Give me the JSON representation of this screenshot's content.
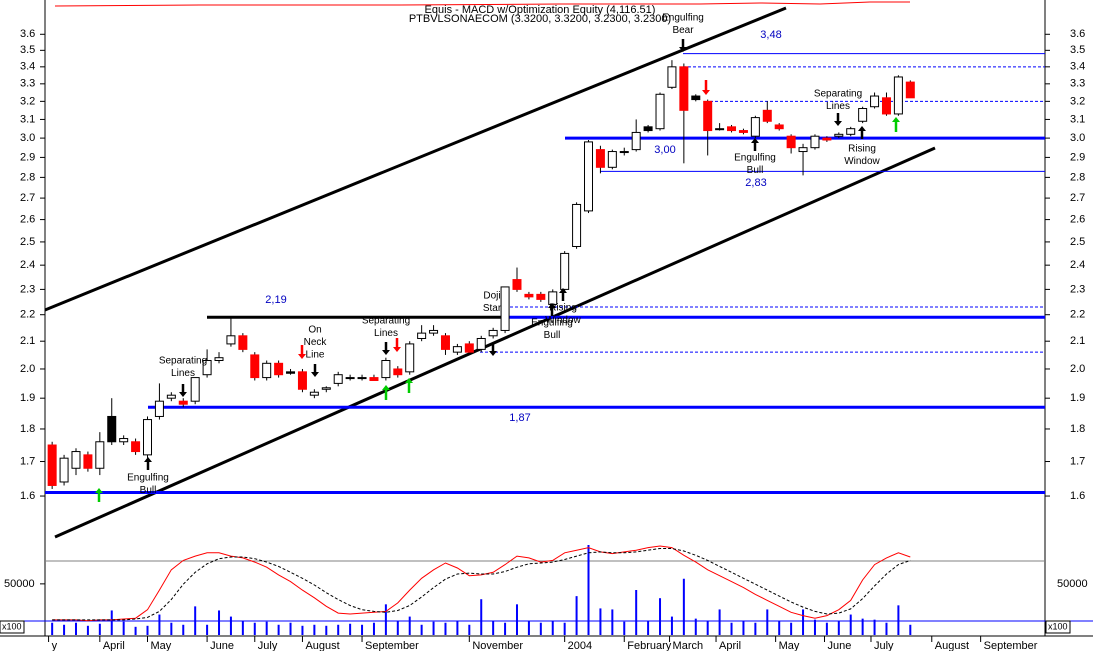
{
  "chart_data": [
    {
      "type": "candlestick",
      "title": "Equis - MACD w/Optimization Equity (4,116.51)",
      "subtitle": "PTBVLSONAECOM (3.3200, 3.3200, 3.2300, 3.2300)",
      "open": [
        1.75,
        1.64,
        1.68,
        1.72,
        1.68,
        1.84,
        1.76,
        1.76,
        1.72,
        1.84,
        1.9,
        1.89,
        1.89,
        1.98,
        2.03,
        2.09,
        2.12,
        2.05,
        1.97,
        2.02,
        1.99,
        1.99,
        1.91,
        1.93,
        1.95,
        1.97,
        1.97,
        1.97,
        1.97,
        2.0,
        1.99,
        2.11,
        2.13,
        2.12,
        2.06,
        2.09,
        2.07,
        2.12,
        2.14,
        2.34,
        2.28,
        2.28,
        2.24,
        2.3,
        2.48,
        2.64,
        2.94,
        2.85,
        2.93,
        2.94,
        3.06,
        3.05,
        3.28,
        3.4,
        3.23,
        3.2,
        3.05,
        3.06,
        3.04,
        3.01,
        3.15,
        3.07,
        3.01,
        2.93,
        2.95,
        3.0,
        3.01,
        3.02,
        3.09,
        3.17,
        3.22,
        3.13,
        3.31
      ],
      "high": [
        1.76,
        1.72,
        1.74,
        1.73,
        1.79,
        1.9,
        1.78,
        1.77,
        1.84,
        1.95,
        1.92,
        1.9,
        1.97,
        2.07,
        2.06,
        2.19,
        2.13,
        2.06,
        2.03,
        2.03,
        2.0,
        2.0,
        1.93,
        1.94,
        1.99,
        1.98,
        1.98,
        1.98,
        2.04,
        2.01,
        2.1,
        2.16,
        2.16,
        2.13,
        2.09,
        2.1,
        2.12,
        2.15,
        2.31,
        2.39,
        2.29,
        2.29,
        2.3,
        2.46,
        2.68,
        2.99,
        2.96,
        2.94,
        2.95,
        3.1,
        3.07,
        3.25,
        3.44,
        3.42,
        3.24,
        3.21,
        3.08,
        3.07,
        3.05,
        3.12,
        3.2,
        3.08,
        3.02,
        2.97,
        3.02,
        3.01,
        3.03,
        3.06,
        3.17,
        3.25,
        3.25,
        3.35,
        3.32
      ],
      "low": [
        1.62,
        1.63,
        1.66,
        1.67,
        1.66,
        1.75,
        1.75,
        1.72,
        1.71,
        1.83,
        1.89,
        1.87,
        1.88,
        1.97,
        2.02,
        2.08,
        2.06,
        1.96,
        1.96,
        1.97,
        1.98,
        1.92,
        1.9,
        1.92,
        1.94,
        1.96,
        1.96,
        1.96,
        1.96,
        1.97,
        1.98,
        2.1,
        2.12,
        2.05,
        2.05,
        2.05,
        2.06,
        2.11,
        2.13,
        2.29,
        2.26,
        2.25,
        2.23,
        2.29,
        2.47,
        2.63,
        2.82,
        2.84,
        2.91,
        2.93,
        3.03,
        3.04,
        3.27,
        2.87,
        3.2,
        2.91,
        3.04,
        3.03,
        3.02,
        3.0,
        3.08,
        3.04,
        2.92,
        2.81,
        2.94,
        2.98,
        3.0,
        3.01,
        3.08,
        3.16,
        3.12,
        3.12,
        3.22
      ],
      "close": [
        1.63,
        1.71,
        1.73,
        1.68,
        1.76,
        1.76,
        1.77,
        1.73,
        1.83,
        1.89,
        1.91,
        1.88,
        1.97,
        2.03,
        2.04,
        2.12,
        2.07,
        1.97,
        2.02,
        1.98,
        1.985,
        1.93,
        1.92,
        1.935,
        1.98,
        1.97,
        1.97,
        1.96,
        2.03,
        1.98,
        2.09,
        2.13,
        2.14,
        2.07,
        2.08,
        2.06,
        2.11,
        2.14,
        2.31,
        2.3,
        2.27,
        2.26,
        2.29,
        2.45,
        2.67,
        2.98,
        2.85,
        2.93,
        2.93,
        3.03,
        3.04,
        3.24,
        3.4,
        3.15,
        3.21,
        3.04,
        3.05,
        3.04,
        3.03,
        3.11,
        3.09,
        3.05,
        2.95,
        2.95,
        3.01,
        2.99,
        3.02,
        3.05,
        3.16,
        3.23,
        3.13,
        3.34,
        3.22
      ],
      "up_color": "#ffffff",
      "down_color": "#ff0000",
      "hold_color": "#000000",
      "log_scale": true,
      "ylim": [
        1.43,
        3.79
      ],
      "yticks": [
        1.6,
        1.7,
        1.8,
        1.9,
        {
          "value": 2,
          "label": "2.0"
        },
        2.1,
        2.2,
        2.3,
        2.4,
        2.5,
        2.6,
        2.7,
        2.8,
        2.9,
        {
          "value": 3,
          "label": "3.0"
        },
        3.1,
        3.2,
        3.3,
        3.4,
        3.5,
        3.6
      ],
      "xlim": [
        -0.6,
        83.3
      ],
      "xticks": [
        {
          "value": -0.3,
          "label": "y"
        },
        {
          "value": 4.0,
          "label": "April"
        },
        {
          "value": 8.0,
          "label": "May"
        },
        {
          "value": 13.0,
          "label": "June"
        },
        {
          "value": 17.0,
          "label": "July"
        },
        {
          "value": 21.0,
          "label": "August"
        },
        {
          "value": 26.0,
          "label": "September"
        },
        {
          "value": 35.0,
          "label": "November"
        },
        {
          "value": 43.0,
          "label": "2004"
        },
        {
          "value": 48.0,
          "label": "February"
        },
        {
          "value": 51.8,
          "label": "March"
        },
        {
          "value": 55.7,
          "label": "April"
        },
        {
          "value": 60.7,
          "label": "May"
        },
        {
          "value": 64.8,
          "label": "June"
        },
        {
          "value": 68.7,
          "label": "July"
        },
        {
          "value": 73.8,
          "label": "August"
        },
        {
          "value": 77.9,
          "label": "September"
        }
      ],
      "levels": [
        {
          "value": 3.48,
          "label": "3,48"
        },
        {
          "value": 3.4
        },
        {
          "value": 3.2
        },
        {
          "value": 3.0,
          "label": "3,00"
        },
        {
          "value": 2.83,
          "label": "2,83"
        },
        {
          "value": 2.23
        },
        {
          "value": 2.19,
          "label": "2,19"
        },
        {
          "value": 2.06
        },
        {
          "value": 1.87,
          "label": "1,87"
        },
        {
          "value": 1.61
        }
      ],
      "level_color": "#0000ff",
      "annotations": [
        {
          "lines": [
            "Engulfing",
            "Bull"
          ]
        },
        {
          "lines": [
            "Separating",
            "Lines"
          ]
        },
        {
          "lines": [
            "On",
            "Neck",
            "Line"
          ]
        },
        {
          "lines": [
            "Separating",
            "Lines"
          ]
        },
        {
          "lines": [
            "Doji",
            "Star"
          ]
        },
        {
          "lines": [
            "Rising",
            "Window"
          ]
        },
        {
          "lines": [
            "Engulfing",
            "Bull"
          ]
        },
        {
          "lines": [
            "Engulfing",
            "Bear"
          ]
        },
        {
          "lines": [
            "Engulfing",
            "Bull"
          ]
        },
        {
          "lines": [
            "Separating",
            "Lines"
          ]
        },
        {
          "lines": [
            "Rising",
            "Window"
          ]
        }
      ]
    },
    {
      "type": "bar",
      "values": [
        12000,
        10000,
        12000,
        9000,
        11000,
        24000,
        13000,
        8000,
        9000,
        20000,
        12000,
        10000,
        28000,
        10000,
        24000,
        18000,
        14000,
        12000,
        13000,
        10000,
        12000,
        9000,
        10000,
        9000,
        10000,
        11000,
        10000,
        12000,
        30000,
        14000,
        18000,
        10000,
        13000,
        12000,
        14000,
        10000,
        35000,
        14000,
        12000,
        30000,
        14000,
        12000,
        14000,
        12000,
        38000,
        88000,
        26000,
        25000,
        13000,
        44000,
        14000,
        36000,
        18000,
        55000,
        16000,
        14000,
        25000,
        12000,
        14000,
        12000,
        25000,
        14000,
        12000,
        25000,
        15000,
        12000,
        14000,
        20000,
        16000,
        15000,
        12000,
        29000,
        10000
      ],
      "color": "#0000ff",
      "ylim": [
        0,
        88000
      ],
      "yticks": [
        50000
      ],
      "scale_label": "x100",
      "y2lim": [
        0,
        100
      ],
      "series": [
        {
          "color": "#ff0000",
          "axis": "y2",
          "values": [
            6,
            6,
            6,
            5,
            6,
            6,
            7,
            8,
            18,
            41,
            65,
            76,
            81,
            85,
            85,
            81,
            79,
            74,
            68,
            59,
            51,
            41,
            32,
            22,
            14,
            13,
            14,
            15,
            16,
            26,
            41,
            55,
            65,
            73,
            67,
            58,
            59,
            62,
            71,
            81,
            79,
            74,
            76,
            85,
            88,
            91,
            86,
            84,
            86,
            88,
            91,
            93,
            91,
            82,
            74,
            65,
            58,
            51,
            44,
            36,
            29,
            22,
            15,
            11,
            8,
            11,
            18,
            29,
            53,
            71,
            79,
            85,
            80
          ]
        },
        {
          "color": "#000000",
          "axis": "y2",
          "dash": true,
          "values": [
            6,
            6,
            6,
            6,
            6,
            6,
            6,
            7,
            9,
            16,
            30,
            48,
            62,
            72,
            78,
            80,
            80,
            78,
            74,
            69,
            62,
            55,
            47,
            38,
            30,
            23,
            18,
            16,
            15,
            17,
            23,
            33,
            44,
            54,
            60,
            61,
            60,
            60,
            63,
            68,
            72,
            73,
            74,
            77,
            81,
            85,
            86,
            85,
            85,
            86,
            88,
            90,
            90,
            87,
            82,
            76,
            69,
            62,
            55,
            48,
            41,
            34,
            27,
            21,
            16,
            13,
            14,
            19,
            31,
            46,
            60,
            71,
            76
          ]
        }
      ]
    }
  ]
}
